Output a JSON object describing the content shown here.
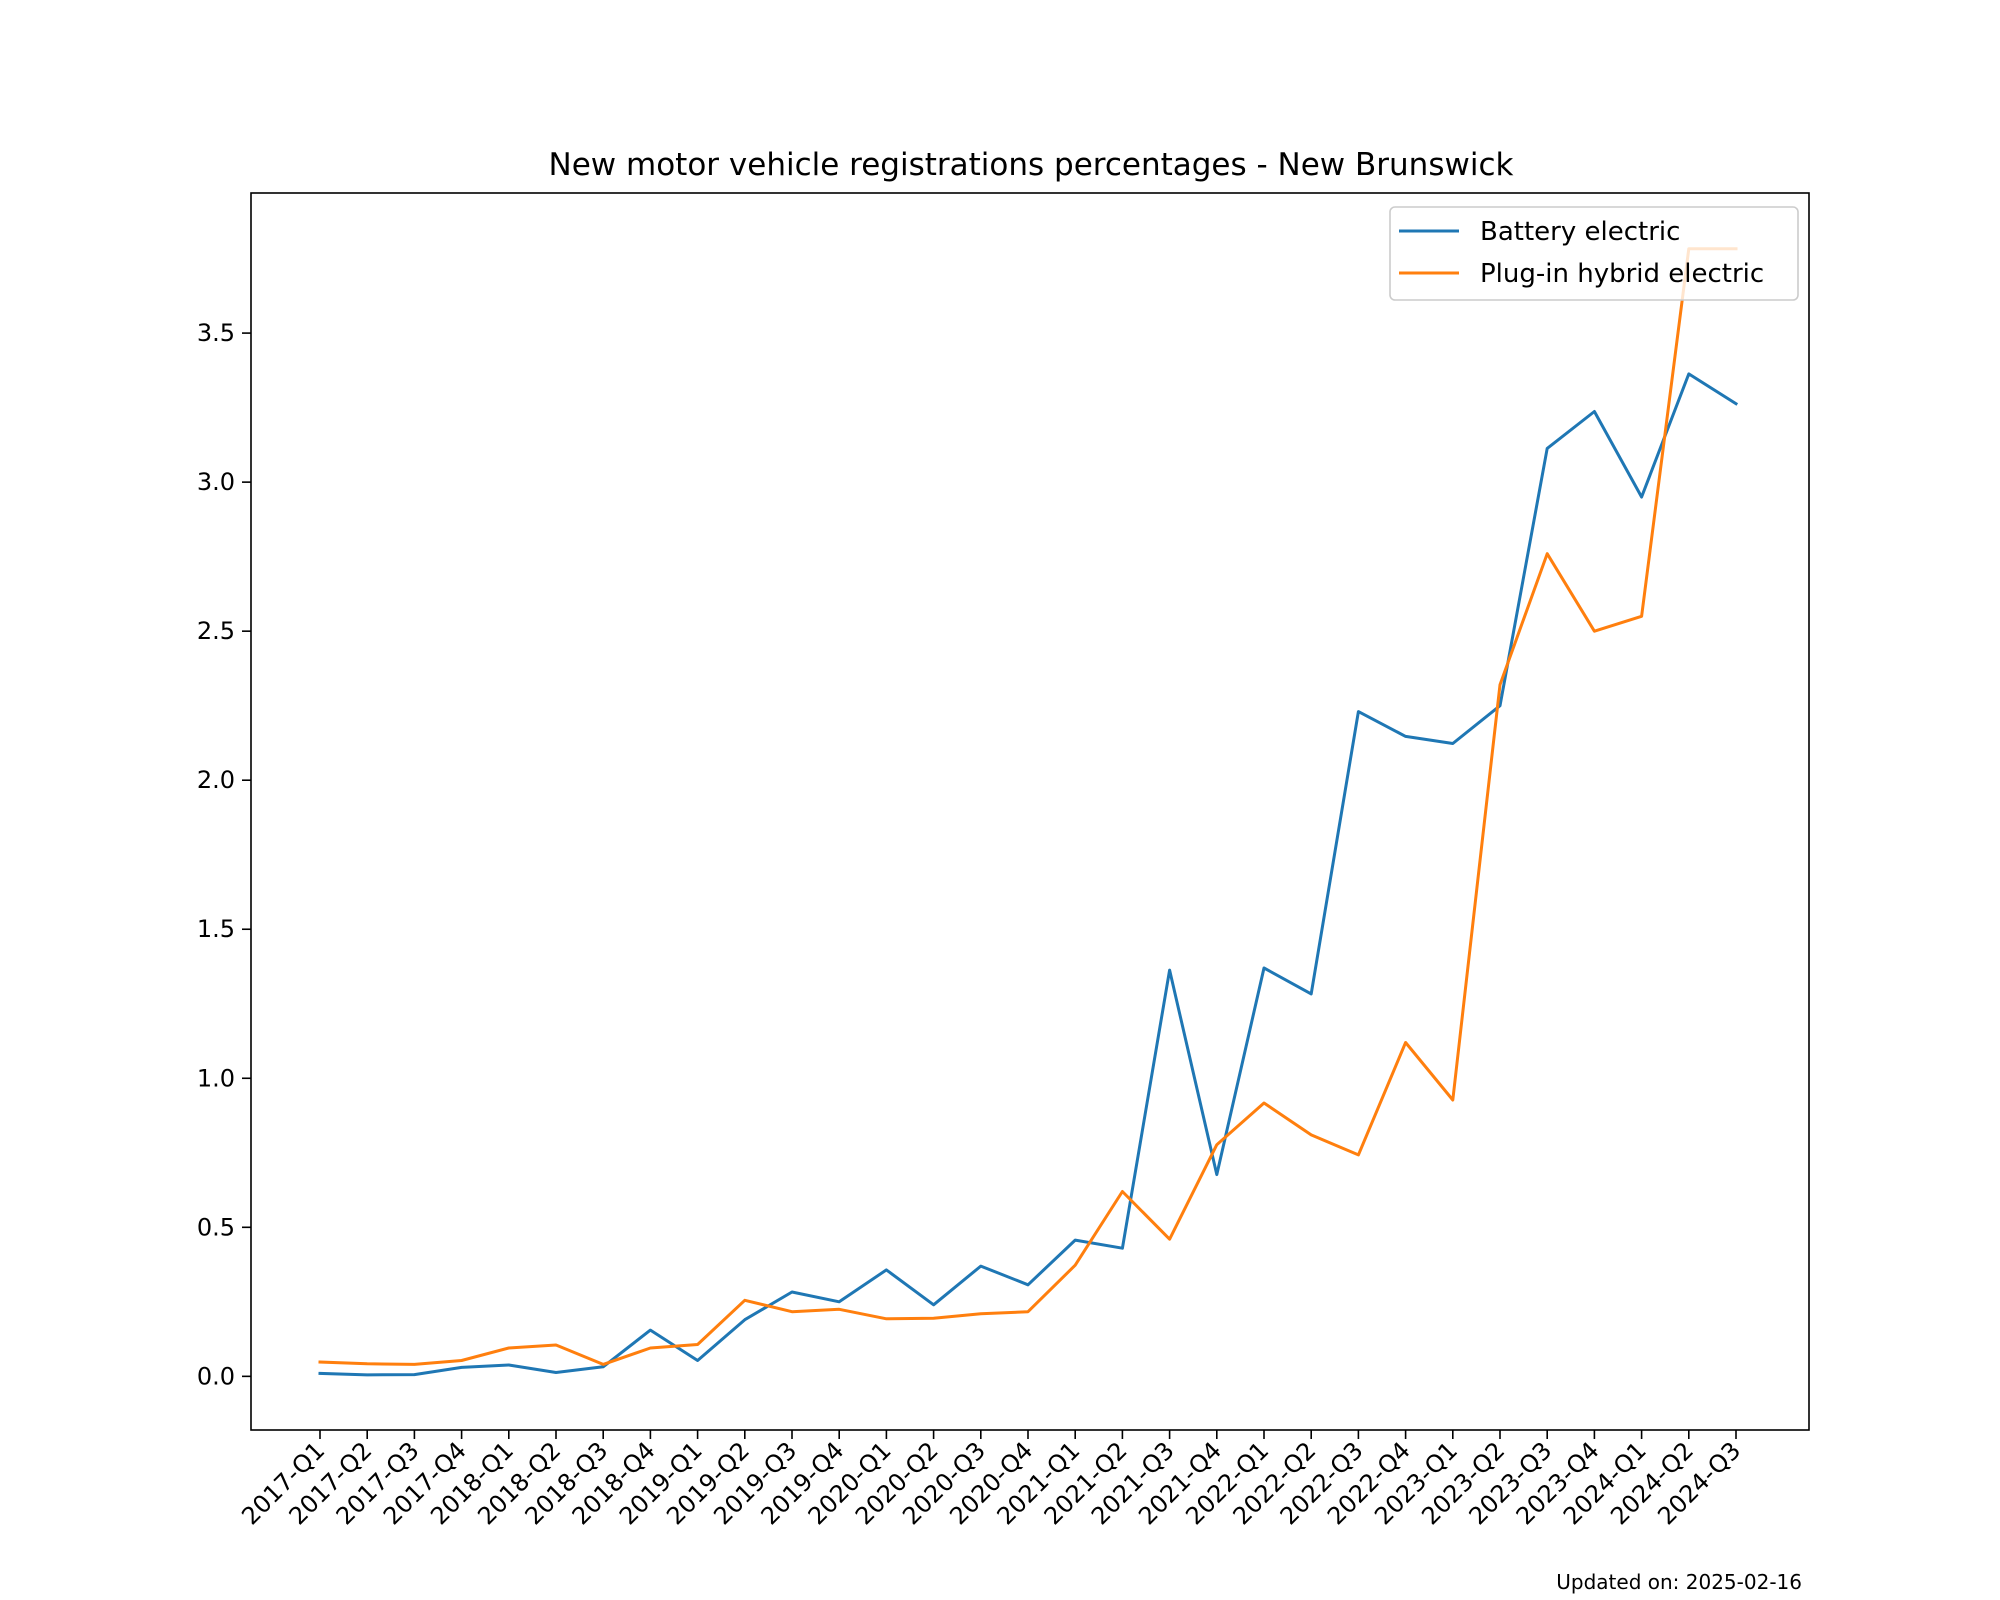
{
  "chart_data": {
    "type": "line",
    "title": "New motor vehicle registrations percentages - New Brunswick",
    "xlabel": "",
    "ylabel": "",
    "categories": [
      "2017-Q1",
      "2017-Q2",
      "2017-Q3",
      "2017-Q4",
      "2018-Q1",
      "2018-Q2",
      "2018-Q3",
      "2018-Q4",
      "2019-Q1",
      "2019-Q2",
      "2019-Q3",
      "2019-Q4",
      "2020-Q1",
      "2020-Q2",
      "2020-Q3",
      "2020-Q4",
      "2021-Q1",
      "2021-Q2",
      "2021-Q3",
      "2021-Q4",
      "2022-Q1",
      "2022-Q2",
      "2022-Q3",
      "2022-Q4",
      "2023-Q1",
      "2023-Q2",
      "2023-Q3",
      "2023-Q4",
      "2024-Q1",
      "2024-Q2",
      "2024-Q3"
    ],
    "series": [
      {
        "name": "Battery electric",
        "color": "#1f77b4",
        "values": [
          0.01,
          0.005,
          0.006,
          0.03,
          0.038,
          0.013,
          0.032,
          0.155,
          0.053,
          0.19,
          0.283,
          0.25,
          0.357,
          0.24,
          0.37,
          0.307,
          0.457,
          0.43,
          1.363,
          0.677,
          1.37,
          1.283,
          2.23,
          2.147,
          2.123,
          2.25,
          3.113,
          3.237,
          2.95,
          3.363,
          3.263
        ]
      },
      {
        "name": "Plug-in hybrid electric",
        "color": "#ff7f0e",
        "values": [
          0.048,
          0.042,
          0.04,
          0.053,
          0.095,
          0.105,
          0.04,
          0.095,
          0.107,
          0.255,
          0.217,
          0.225,
          0.193,
          0.195,
          0.21,
          0.217,
          0.373,
          0.62,
          0.46,
          0.777,
          0.917,
          0.81,
          0.743,
          1.12,
          0.927,
          2.32,
          2.76,
          2.5,
          2.55,
          3.783,
          3.783
        ]
      }
    ],
    "yticks": [
      0.0,
      0.5,
      1.0,
      1.5,
      2.0,
      2.5,
      3.0,
      3.5
    ],
    "ylim": [
      -0.18,
      3.97
    ],
    "grid": false,
    "legend_position": "upper right",
    "footnote": "Updated on: 2025-02-16"
  }
}
